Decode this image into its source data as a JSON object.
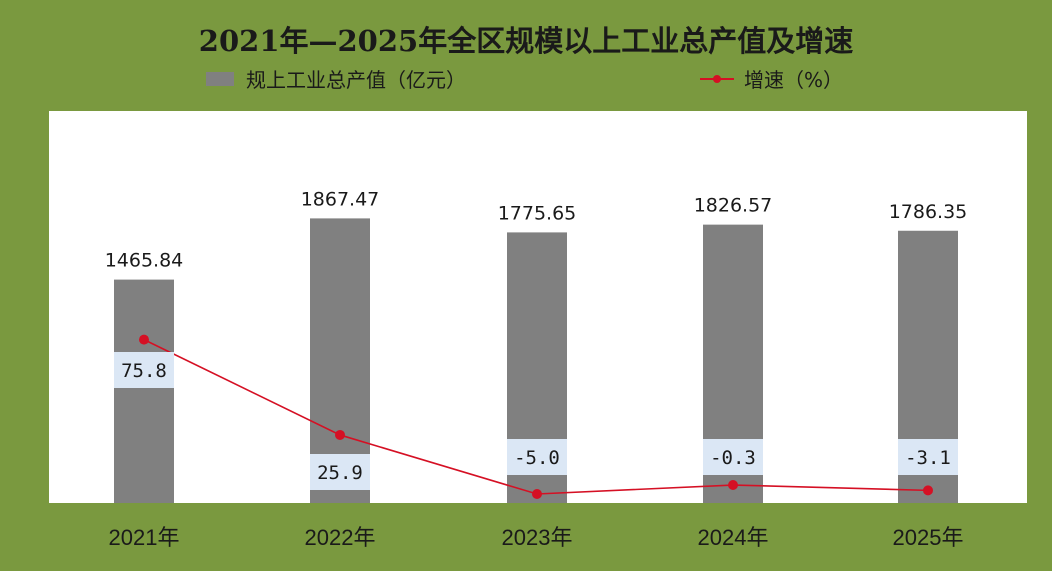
{
  "title": "2021年—2025年全区规模以上工业总产值及增速",
  "legend": {
    "bar_label": "规上工业总产值（亿元）",
    "line_label": "增速（%）"
  },
  "colors": {
    "background": "#7a993f",
    "plot_background": "#ffffff",
    "bar": "#808080",
    "line": "#d51024",
    "growth_label_box": "#dbe7f5"
  },
  "chart_data": {
    "type": "bar",
    "categories": [
      "2021年",
      "2022年",
      "2023年",
      "2024年",
      "2025年"
    ],
    "series": [
      {
        "name": "规上工业总产值（亿元）",
        "type": "bar",
        "values": [
          1465.84,
          1867.47,
          1775.65,
          1826.57,
          1786.35
        ],
        "labels": [
          "1465.84",
          "1867.47",
          "1775.65",
          "1826.57",
          "1786.35"
        ]
      },
      {
        "name": "增速（%）",
        "type": "line",
        "values": [
          75.8,
          25.9,
          -5.0,
          -0.3,
          -3.1
        ],
        "labels": [
          "75.8",
          "25.9",
          "-5.0",
          "-0.3",
          "-3.1"
        ]
      }
    ],
    "title": "2021年—2025年全区规模以上工业总产值及增速",
    "xlabel": "",
    "ylabel": "",
    "grid": false,
    "legend_position": "top"
  }
}
